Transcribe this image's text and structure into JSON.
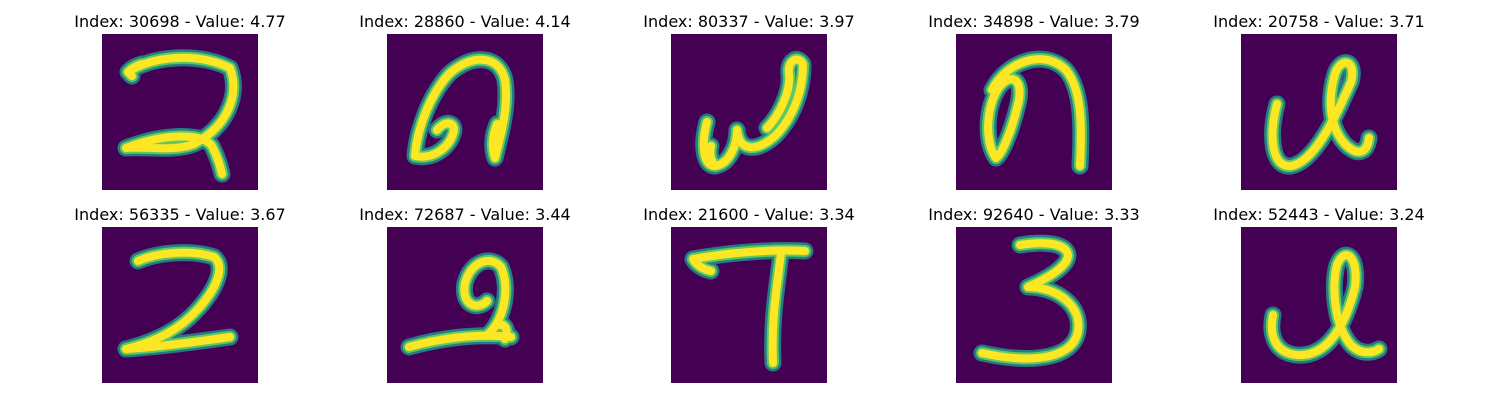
{
  "panels": [
    {
      "index": "30698",
      "value": "4.77",
      "title": "Index: 30698 - Value: 4.77"
    },
    {
      "index": "28860",
      "value": "4.14",
      "title": "Index: 28860 - Value: 4.14"
    },
    {
      "index": "80337",
      "value": "3.97",
      "title": "Index: 80337 - Value: 3.97"
    },
    {
      "index": "34898",
      "value": "3.79",
      "title": "Index: 34898 - Value: 3.79"
    },
    {
      "index": "20758",
      "value": "3.71",
      "title": "Index: 20758 - Value: 3.71"
    },
    {
      "index": "56335",
      "value": "3.67",
      "title": "Index: 56335 - Value: 3.67"
    },
    {
      "index": "72687",
      "value": "3.44",
      "title": "Index: 72687 - Value: 3.44"
    },
    {
      "index": "21600",
      "value": "3.34",
      "title": "Index: 21600 - Value: 3.34"
    },
    {
      "index": "92640",
      "value": "3.33",
      "title": "Index: 92640 - Value: 3.33"
    },
    {
      "index": "52443",
      "value": "3.24",
      "title": "Index: 52443 - Value: 3.24"
    }
  ],
  "colors": {
    "background": "#440154",
    "stroke_edge": "#21918c",
    "stroke_mid": "#5ec962",
    "stroke_core": "#fde725"
  }
}
